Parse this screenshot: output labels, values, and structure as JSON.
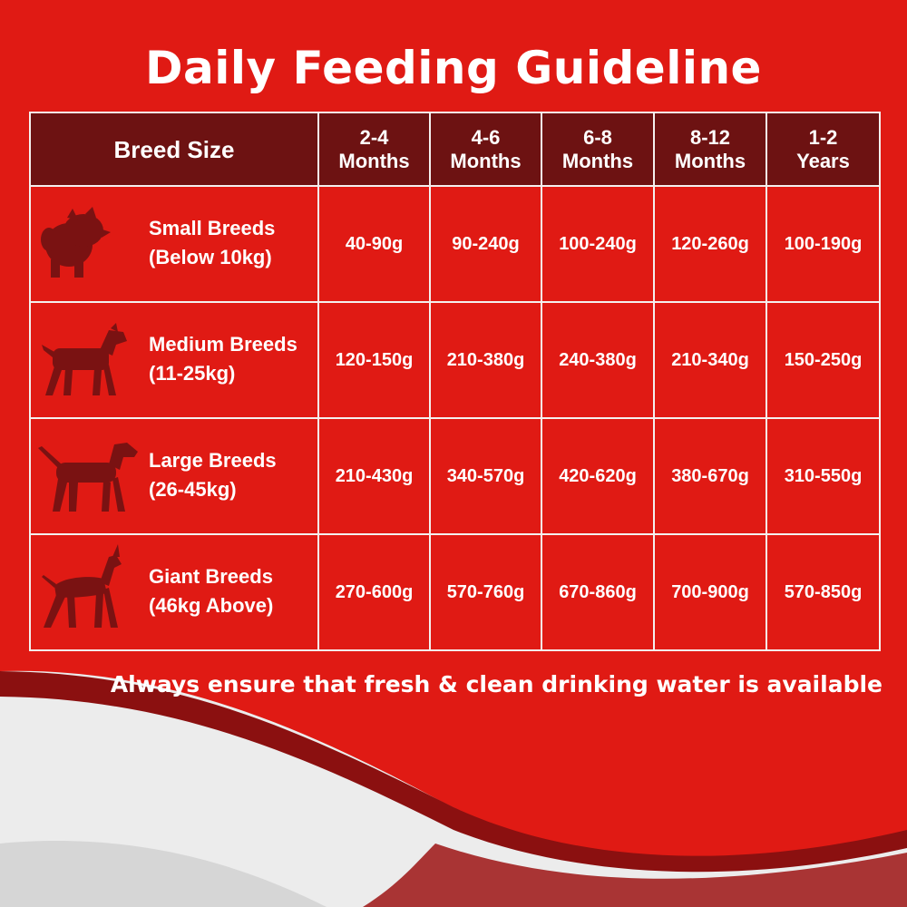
{
  "title": "Daily Feeding Guideline",
  "header": {
    "breed_size": "Breed Size",
    "columns": [
      {
        "line1": "2-4",
        "line2": "Months"
      },
      {
        "line1": "4-6",
        "line2": "Months"
      },
      {
        "line1": "6-8",
        "line2": "Months"
      },
      {
        "line1": "8-12",
        "line2": "Months"
      },
      {
        "line1": "1-2",
        "line2": "Years"
      }
    ]
  },
  "rows": [
    {
      "name": "Small Breeds",
      "weight": "(Below 10kg)",
      "icon": "small-dog-icon",
      "values": [
        "40-90g",
        "90-240g",
        "100-240g",
        "120-260g",
        "100-190g"
      ]
    },
    {
      "name": "Medium Breeds",
      "weight": "(11-25kg)",
      "icon": "medium-dog-icon",
      "values": [
        "120-150g",
        "210-380g",
        "240-380g",
        "210-340g",
        "150-250g"
      ]
    },
    {
      "name": "Large Breeds",
      "weight": "(26-45kg)",
      "icon": "large-dog-icon",
      "values": [
        "210-430g",
        "340-570g",
        "420-620g",
        "380-670g",
        "310-550g"
      ]
    },
    {
      "name": "Giant Breeds",
      "weight": "(46kg Above)",
      "icon": "giant-dog-icon",
      "values": [
        "270-600g",
        "570-760g",
        "670-860g",
        "700-900g",
        "570-850g"
      ]
    }
  ],
  "footnote": "Always ensure that fresh & clean drinking water is available",
  "colors": {
    "background": "#e01a14",
    "header": "#6d1212",
    "silhouette": "#7a1212",
    "wave_light": "#ececec"
  }
}
